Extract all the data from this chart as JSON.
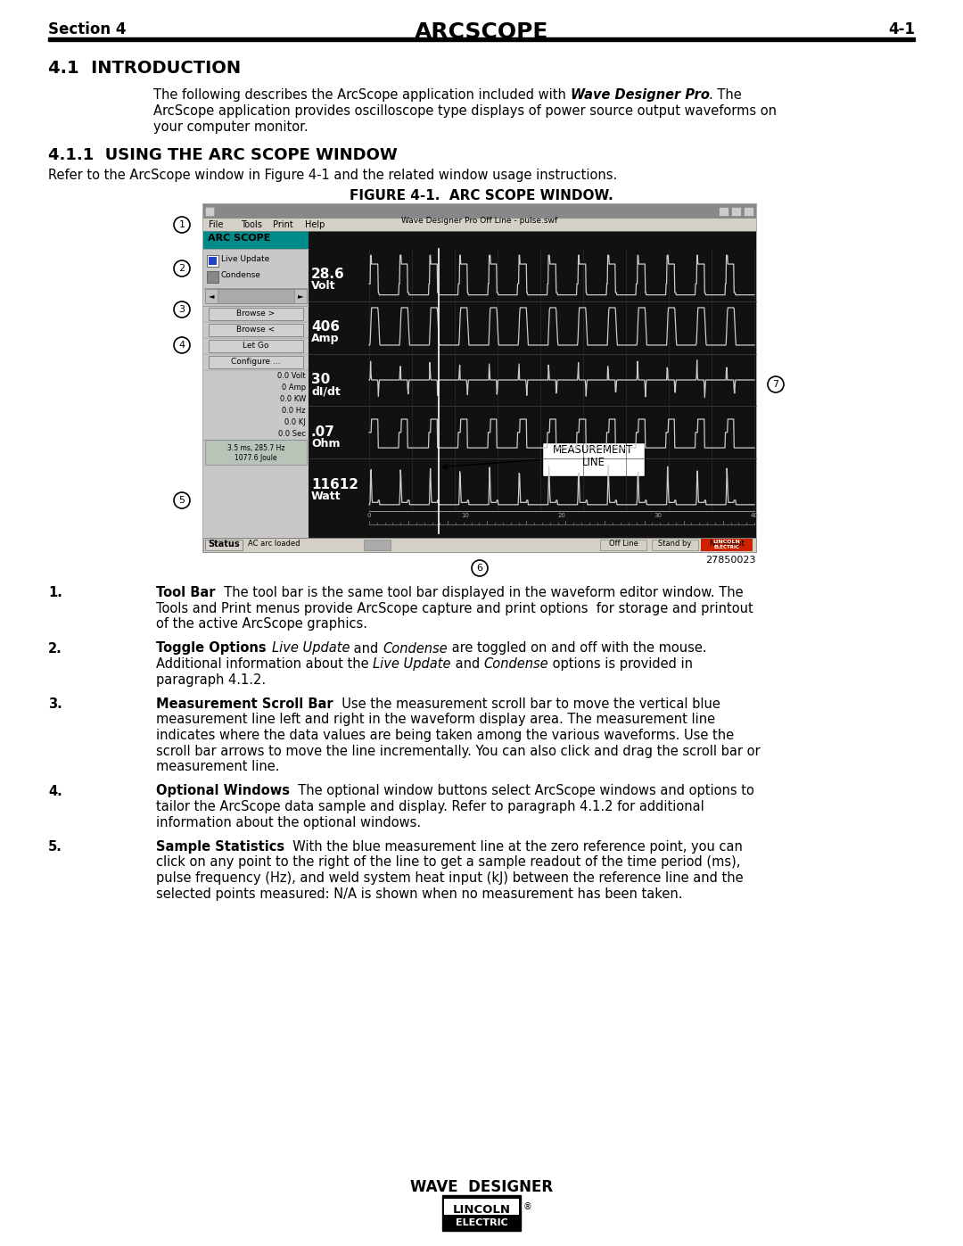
{
  "page_bg": "#ffffff",
  "header": {
    "left": "Section 4",
    "center": "ARCSCOPE",
    "right": "4-1"
  },
  "section_title": "4.1  INTRODUCTION",
  "intro_line1_pre": "The following describes the ArcScope application included with ",
  "intro_line1_bold_italic": "Wave Designer Pro",
  "intro_line1_post": ". The",
  "intro_line2": "ArcScope application provides oscilloscope type displays of power source output waveforms on",
  "intro_line3": "your computer monitor.",
  "subsection_title": "4.1.1  USING THE ARC SCOPE WINDOW",
  "subsection_intro": "Refer to the ArcScope window in Figure 4-1 and the related window usage instructions.",
  "figure_title": "FIGURE 4-1.  ARC SCOPE WINDOW.",
  "figure_number": "27850023",
  "footer_text": "WAVE  DESIGNER",
  "list_items": [
    {
      "num": "1.",
      "bold": "Tool Bar",
      "lines": [
        "  The tool bar is the same tool bar displayed in the waveform editor window. The",
        "Tools and Print menus provide ArcScope capture and print options  for storage and printout",
        "of the active ArcScope graphics."
      ]
    },
    {
      "num": "2.",
      "bold": "Toggle Options",
      "lines": [
        "  ⁣Live Update⁣ and ⁤Condense⁤ are toggled on and off with the mouse.",
        "Additional information about the ⁣Live Update⁣ and ⁤Condense⁤ options is provided in",
        "paragraph 4.1.2."
      ]
    },
    {
      "num": "3.",
      "bold": "Measurement Scroll Bar",
      "lines": [
        "  Use the measurement scroll bar to move the vertical blue",
        "measurement line left and right in the waveform display area. The measurement line",
        "indicates where the data values are being taken among the various waveforms. Use the",
        "scroll bar arrows to move the line incrementally. You can also click and drag the scroll bar or",
        "measurement line."
      ]
    },
    {
      "num": "4.",
      "bold": "Optional Windows",
      "lines": [
        "  The optional window buttons select ArcScope windows and options to",
        "tailor the ArcScope data sample and display. Refer to paragraph 4.1.2 for additional",
        "information about the optional windows."
      ]
    },
    {
      "num": "5.",
      "bold": "Sample Statistics",
      "lines": [
        "  With the blue measurement line at the zero reference point, you can",
        "click on any point to the right of the line to get a sample readout of the time period (ms),",
        "pulse frequency (Hz), and weld system heat input (kJ) between the reference line and the",
        "selected points measured: N/A is shown when no measurement has been taken."
      ]
    }
  ]
}
